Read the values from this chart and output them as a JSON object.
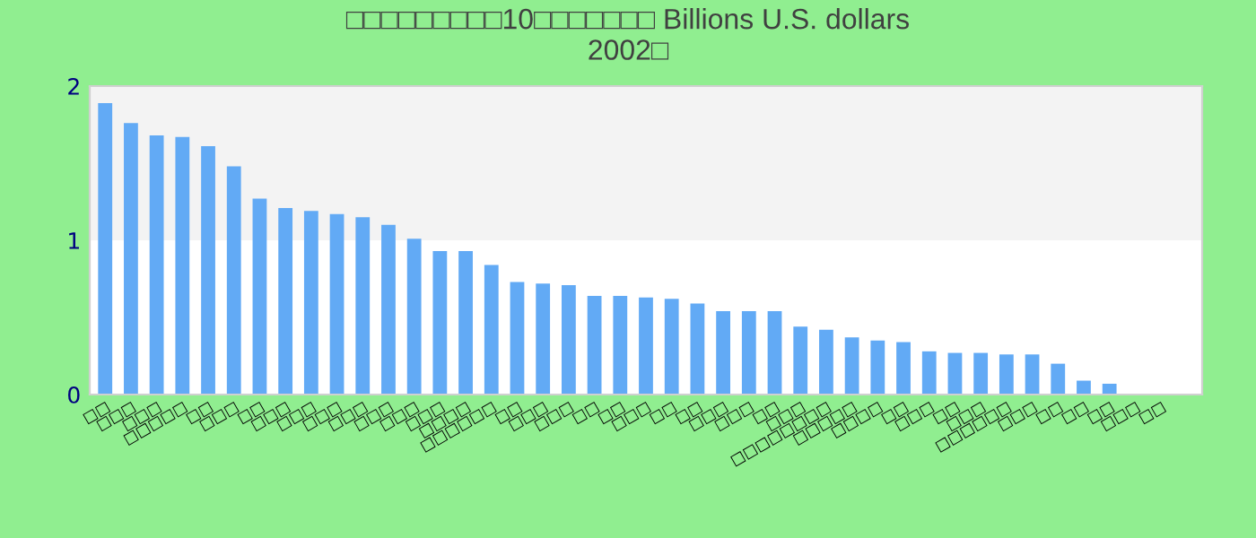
{
  "chart_data": {
    "type": "bar",
    "title": "□□□□□□□□□10□□□□□□□ Billions U.S. dollars\n2002□",
    "categories": [
      "□□",
      "□□□",
      "□□□",
      "□□□□□",
      "□□",
      "□□□",
      "□□",
      "□□□",
      "□□□",
      "□□□",
      "□□□",
      "□□□",
      "□□□",
      "□□□",
      "□□□□",
      "□□□□□□",
      "□□",
      "□□□",
      "□□□",
      "□□",
      "□□",
      "□□□",
      "□□",
      "□□",
      "□□□",
      "□□□",
      "□□",
      "□□□",
      "□□□□□□□□",
      "□□□□□",
      "□□□□",
      "□□",
      "□□□",
      "□□",
      "□□□",
      "□□□□□□",
      "□□□",
      "□□",
      "□□",
      "□□",
      "□□□",
      "□□",
      null
    ],
    "values": [
      1.89,
      1.76,
      1.68,
      1.67,
      1.61,
      1.48,
      1.27,
      1.21,
      1.19,
      1.17,
      1.15,
      1.1,
      1.01,
      0.93,
      0.93,
      0.84,
      0.73,
      0.72,
      0.71,
      0.64,
      0.64,
      0.63,
      0.62,
      0.59,
      0.54,
      0.54,
      0.54,
      0.44,
      0.42,
      0.37,
      0.35,
      0.34,
      0.28,
      0.27,
      0.27,
      0.26,
      0.26,
      0.2,
      0.09,
      0.07,
      null,
      null,
      null
    ],
    "color": "#62aaf5",
    "ylim": [
      0,
      2
    ],
    "yticks": [
      0,
      1,
      2
    ],
    "bands": [
      {
        "axis": "y",
        "from": 1,
        "to": 2,
        "color": "#f3f3f3"
      }
    ]
  }
}
